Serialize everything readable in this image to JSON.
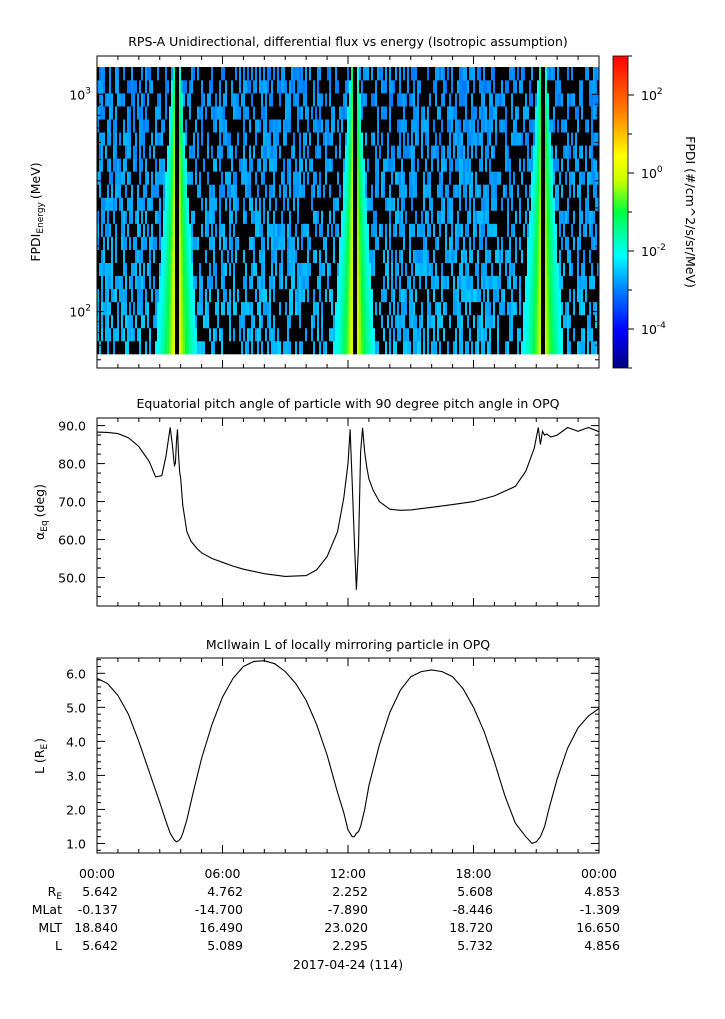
{
  "chart_data": [
    {
      "type": "heatmap",
      "title": "RPS-A Unidirectional, differential flux vs energy (Isotropic assumption)",
      "ylabel_main": "FPDI",
      "ylabel_sub": "Energy",
      "ylabel_unit": "(MeV)",
      "yscale": "log",
      "ylim": [
        55,
        1500
      ],
      "yticks": [
        {
          "v": 100,
          "b": "10",
          "e": "2"
        },
        {
          "v": 1000,
          "b": "10",
          "e": "3"
        }
      ],
      "colorbar": {
        "label": "FPDI (#/cm^2/s/sr/MeV)",
        "scale": "log",
        "range": [
          1e-05,
          1000.0
        ],
        "ticks": [
          {
            "v": 0.0001,
            "b": "10",
            "e": "-4"
          },
          {
            "v": 0.01,
            "b": "10",
            "e": "-2"
          },
          {
            "v": 1,
            "b": "10",
            "e": "0"
          },
          {
            "v": 100,
            "b": "10",
            "e": "2"
          }
        ],
        "colormap": "rainbow"
      },
      "passes": [
        {
          "t": 3.8,
          "peak_log": 0.6
        },
        {
          "t": 12.3,
          "peak_log": 0.5
        },
        {
          "t": 21.3,
          "peak_log": 0.3
        }
      ],
      "energy_bins": 22,
      "time_range_h": [
        0,
        24
      ]
    },
    {
      "type": "line",
      "title": "Equatorial pitch angle of particle with 90 degree pitch angle in OPQ",
      "ylabel_main": "α",
      "ylabel_sub": "Eq",
      "ylabel_unit": "(deg)",
      "ylim": [
        42.5,
        92
      ],
      "yticks": [
        50,
        60,
        70,
        80,
        90
      ],
      "series": [
        {
          "x": [
            0,
            0.5,
            1,
            1.5,
            2,
            2.5,
            2.8,
            3.1,
            3.3,
            3.5,
            3.6,
            3.7,
            3.75,
            3.8,
            3.85,
            3.9,
            3.95,
            4.0,
            4.1,
            4.3,
            4.5,
            4.8,
            5,
            5.5,
            6,
            6.5,
            7,
            8,
            9,
            10,
            10.5,
            11,
            11.5,
            11.8,
            12,
            12.1,
            12.2,
            12.3,
            12.4,
            12.5,
            12.6,
            12.7,
            12.8,
            12.9,
            13,
            13.2,
            13.5,
            14,
            14.5,
            15,
            16,
            17,
            18,
            19,
            20,
            20.5,
            20.9,
            21.1,
            21.2,
            21.3,
            21.4,
            21.5,
            21.7,
            22,
            22.5,
            23,
            23.5,
            24
          ],
          "y": [
            88.3,
            88.2,
            87.9,
            86.8,
            84.5,
            80.5,
            76.5,
            76.8,
            82,
            89.5,
            85,
            79.5,
            80,
            86,
            89,
            82,
            78,
            76,
            69,
            62,
            59.5,
            57.5,
            56.5,
            55,
            54,
            53,
            52.2,
            51,
            50.3,
            50.5,
            52,
            55.5,
            62,
            71,
            80,
            89,
            75,
            60,
            46.8,
            58,
            83,
            89.4,
            83,
            79,
            76,
            73,
            70,
            68,
            67.7,
            67.8,
            68.5,
            69.2,
            70,
            71.5,
            74,
            78,
            84,
            89.5,
            85,
            88.5,
            87.5,
            87.8,
            87,
            87.5,
            89.5,
            88.5,
            89.5,
            88.4
          ]
        }
      ],
      "time_range_h": [
        0,
        24
      ]
    },
    {
      "type": "line",
      "title": "McIlwain L of locally mirroring particle in OPQ",
      "ylabel_main": "L (R",
      "ylabel_sub": "E",
      "ylabel_unit": ")",
      "ylim": [
        0.72,
        6.45
      ],
      "yticks": [
        1,
        2,
        3,
        4,
        5,
        6
      ],
      "series": [
        {
          "x": [
            0,
            0.5,
            1,
            1.5,
            2,
            2.5,
            3,
            3.3,
            3.5,
            3.7,
            3.8,
            3.9,
            4.0,
            4.1,
            4.3,
            4.6,
            5,
            5.5,
            6,
            6.5,
            7,
            7.5,
            8,
            8.5,
            9,
            9.5,
            10,
            10.5,
            11,
            11.5,
            11.8,
            12.0,
            12.2,
            12.3,
            12.4,
            12.5,
            12.6,
            12.8,
            13,
            13.5,
            14,
            14.5,
            15,
            15.5,
            16,
            16.5,
            17,
            17.5,
            18,
            18.5,
            19,
            19.5,
            20,
            20.5,
            20.8,
            21.0,
            21.2,
            21.3,
            21.4,
            21.6,
            22,
            22.5,
            23,
            23.5,
            24
          ],
          "y": [
            5.85,
            5.7,
            5.35,
            4.8,
            4.0,
            3.1,
            2.2,
            1.65,
            1.3,
            1.1,
            1.05,
            1.08,
            1.15,
            1.3,
            1.7,
            2.5,
            3.5,
            4.5,
            5.3,
            5.85,
            6.2,
            6.35,
            6.37,
            6.28,
            6.05,
            5.7,
            5.2,
            4.5,
            3.6,
            2.5,
            1.9,
            1.4,
            1.2,
            1.2,
            1.3,
            1.35,
            1.5,
            2.0,
            2.7,
            3.9,
            4.85,
            5.5,
            5.9,
            6.05,
            6.1,
            6.05,
            5.9,
            5.55,
            5.0,
            4.3,
            3.4,
            2.4,
            1.6,
            1.2,
            1.0,
            1.05,
            1.2,
            1.35,
            1.5,
            2.0,
            2.9,
            3.8,
            4.4,
            4.75,
            4.97
          ]
        }
      ],
      "time_range_h": [
        0,
        24
      ]
    }
  ],
  "time_axis": {
    "tick_labels": [
      "00:00",
      "06:00",
      "12:00",
      "18:00",
      "00:00"
    ],
    "row_labels": [
      "R",
      "MLat",
      "MLT",
      "L"
    ],
    "row_label_R_sub": "E",
    "rows": [
      [
        "5.642",
        "4.762",
        "2.252",
        "5.608",
        "4.853"
      ],
      [
        "-0.137",
        "-14.700",
        "-7.890",
        "-8.446",
        "-1.309"
      ],
      [
        "18.840",
        "16.490",
        "23.020",
        "18.720",
        "16.650"
      ],
      [
        "5.642",
        "5.089",
        "2.295",
        "5.732",
        "4.856"
      ]
    ],
    "date_label": "2017-04-24 (114)"
  }
}
